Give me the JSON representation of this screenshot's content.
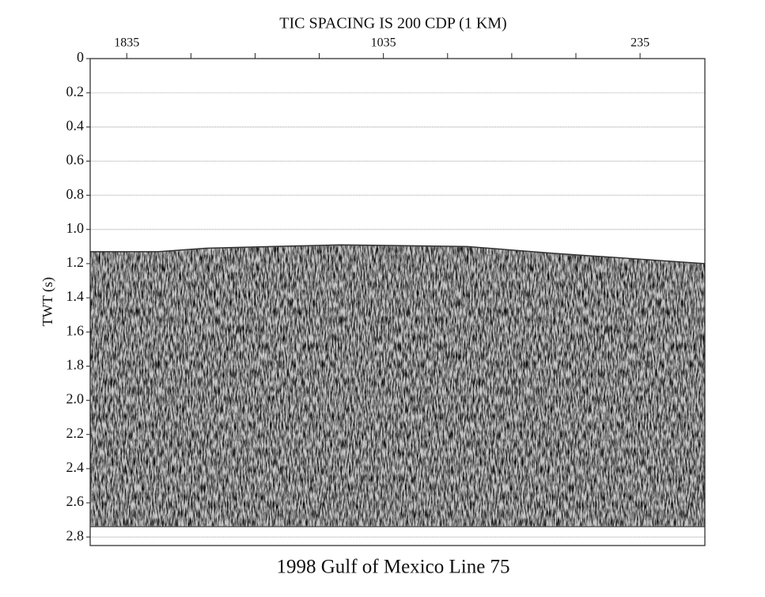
{
  "chart_data": {
    "type": "seismic",
    "title": "TIC SPACING IS 200 CDP (1 KM)",
    "subtitle": "1998 Gulf of Mexico Line 75",
    "y_label": "TWT (s)",
    "xlim": [
      1949,
      33
    ],
    "xticks": [
      1835,
      1035,
      235
    ],
    "xminor_ticks": [
      1635,
      1435,
      1235,
      835,
      635,
      435
    ],
    "ylim": [
      0,
      2.85
    ],
    "yticks": [
      0,
      0.2,
      0.4,
      0.6,
      0.8,
      {
        "value": 1.0,
        "label": "1.0"
      },
      1.2,
      1.4,
      1.6,
      1.8,
      {
        "value": 2.0,
        "label": "2.0"
      },
      2.2,
      2.4,
      2.6,
      2.8
    ],
    "grid": true,
    "x": [
      1949,
      1737,
      1589,
      1169,
      774,
      502,
      33
    ],
    "series": [
      {
        "color": "#333333",
        "values": [
          1.13,
          1.13,
          1.11,
          1.09,
          1.1,
          1.14,
          1.2
        ]
      },
      {
        "color": "#666666",
        "values": [
          2.74,
          2.74,
          2.74,
          2.74,
          2.74,
          2.74,
          2.74
        ]
      }
    ]
  }
}
